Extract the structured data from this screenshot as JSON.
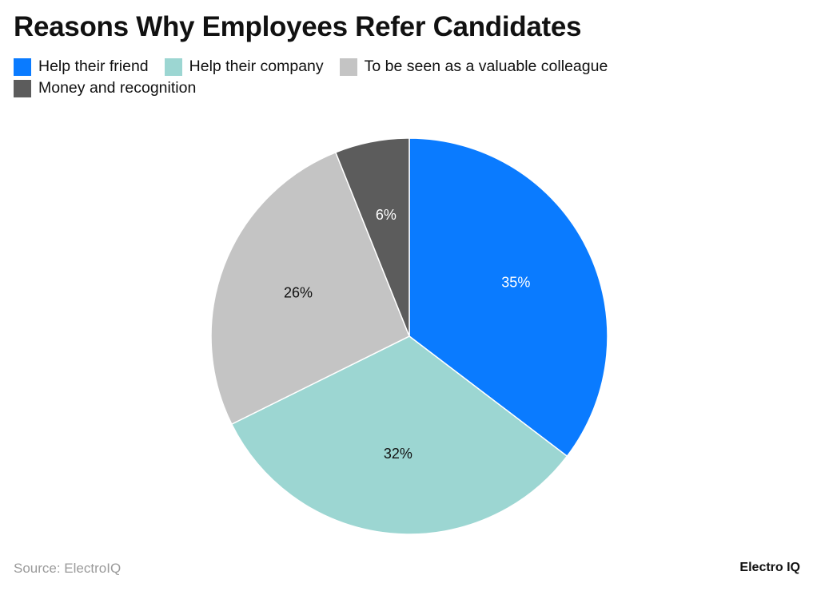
{
  "title": "Reasons Why Employees Refer Candidates",
  "source": "Source: ElectroIQ",
  "brand": "Electro IQ",
  "chart_data": {
    "type": "pie",
    "title": "Reasons Why Employees Refer Candidates",
    "legend_position": "top-left",
    "categories": [
      "Help their friend",
      "Help their company",
      "To be seen as a valuable colleague",
      "Money and recognition"
    ],
    "values": [
      35,
      32,
      26,
      6
    ],
    "labels": [
      "35%",
      "32%",
      "26%",
      "6%"
    ],
    "colors": [
      "#0a7bff",
      "#9cd6d2",
      "#c4c4c4",
      "#5c5c5c"
    ],
    "label_colors": [
      "#ffffff",
      "#111111",
      "#111111",
      "#ffffff"
    ]
  }
}
